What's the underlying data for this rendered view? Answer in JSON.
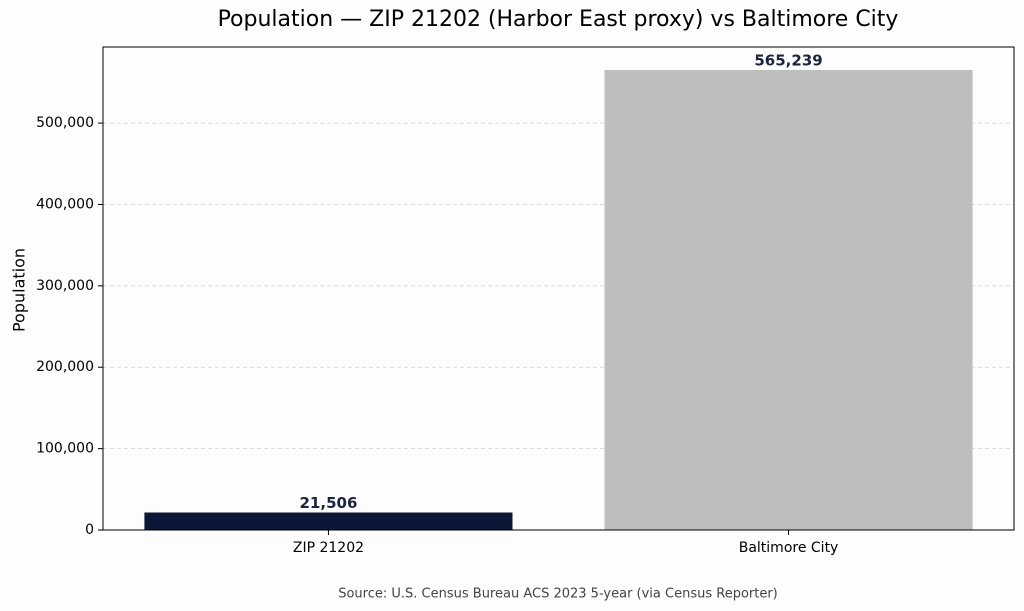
{
  "chart_data": {
    "type": "bar",
    "title": "Population — ZIP 21202 (Harbor East proxy) vs Baltimore City",
    "ylabel": "Population",
    "source": "Source: U.S. Census Bureau ACS 2023 5-year (via Census Reporter)",
    "categories": [
      "ZIP 21202",
      "Baltimore City"
    ],
    "values": [
      21506,
      565239
    ],
    "value_labels": [
      "21,506",
      "565,239"
    ],
    "colors": [
      "#0b1736",
      "#bebebe"
    ],
    "ylim": [
      0,
      593501
    ],
    "yticks": [
      0,
      {
        "value": 100000,
        "label": "100,000"
      },
      {
        "value": 200000,
        "label": "200,000"
      },
      {
        "value": 300000,
        "label": "300,000"
      },
      {
        "value": 400000,
        "label": "400,000"
      },
      {
        "value": 500000,
        "label": "500,000"
      }
    ],
    "grid": true
  }
}
